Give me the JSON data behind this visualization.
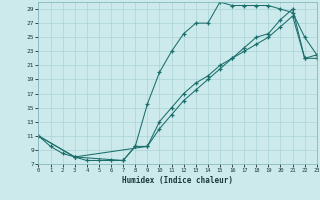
{
  "xlabel": "Humidex (Indice chaleur)",
  "ylabel": "",
  "bg_color": "#cce9ec",
  "grid_color": "#aad4d8",
  "line_color": "#1a6e6a",
  "xmin": 0,
  "xmax": 23,
  "ymin": 7,
  "ymax": 30,
  "yticks": [
    7,
    9,
    11,
    13,
    15,
    17,
    19,
    21,
    23,
    25,
    27,
    29
  ],
  "xticks": [
    0,
    1,
    2,
    3,
    4,
    5,
    6,
    7,
    8,
    9,
    10,
    11,
    12,
    13,
    14,
    15,
    16,
    17,
    18,
    19,
    20,
    21,
    22,
    23
  ],
  "curves": [
    {
      "x": [
        0,
        1,
        2,
        3,
        4,
        5,
        6,
        7,
        8,
        9,
        10,
        11,
        12,
        13,
        14,
        15,
        16,
        17,
        18,
        19,
        20,
        21,
        22,
        23
      ],
      "y": [
        11,
        9.5,
        8.5,
        8,
        7.5,
        7.5,
        7.5,
        7.5,
        9.5,
        15.5,
        20,
        23,
        25.5,
        27,
        27,
        30,
        29.5,
        29.5,
        29.5,
        29.5,
        29,
        28.5,
        25,
        22.5
      ]
    },
    {
      "x": [
        0,
        3,
        7,
        8,
        9,
        10,
        11,
        12,
        13,
        14,
        15,
        16,
        17,
        18,
        19,
        20,
        21,
        22,
        23
      ],
      "y": [
        11,
        8,
        7.5,
        9.5,
        9.5,
        13,
        15,
        17,
        18.5,
        19.5,
        21,
        22,
        23.5,
        25,
        25.5,
        27.5,
        29,
        22,
        22.5
      ]
    },
    {
      "x": [
        0,
        3,
        9,
        10,
        11,
        12,
        13,
        14,
        15,
        16,
        17,
        18,
        19,
        20,
        21,
        22,
        23
      ],
      "y": [
        11,
        8,
        9.5,
        12,
        14,
        16,
        17.5,
        19,
        20.5,
        22,
        23,
        24,
        25,
        26.5,
        28,
        22,
        22
      ]
    }
  ]
}
